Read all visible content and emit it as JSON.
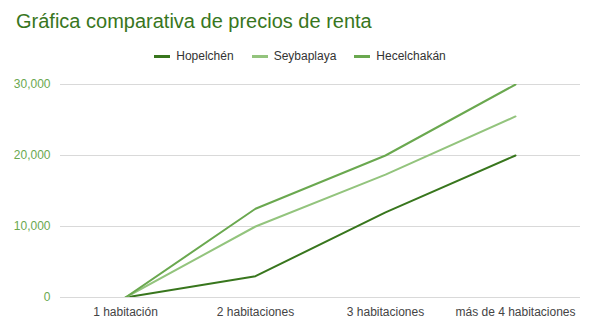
{
  "chart_data": {
    "type": "line",
    "title": "Gráfica comparativa de precios de renta",
    "categories": [
      "1 habitación",
      "2 habitaciones",
      "3 habitaciones",
      "más de 4 habitaciones"
    ],
    "series": [
      {
        "name": "Hopelchén",
        "color": "#38761d",
        "values": [
          0,
          3000,
          12000,
          20000
        ]
      },
      {
        "name": "Seybaplaya",
        "color": "#93c47d",
        "values": [
          0,
          10000,
          17300,
          25500
        ]
      },
      {
        "name": "Hecelchakán",
        "color": "#6aa84f",
        "values": [
          0,
          12500,
          20000,
          30000
        ]
      }
    ],
    "ylim": [
      0,
      30000
    ],
    "yticks": [
      0,
      10000,
      20000,
      30000
    ],
    "grid": true,
    "legend": "top"
  }
}
